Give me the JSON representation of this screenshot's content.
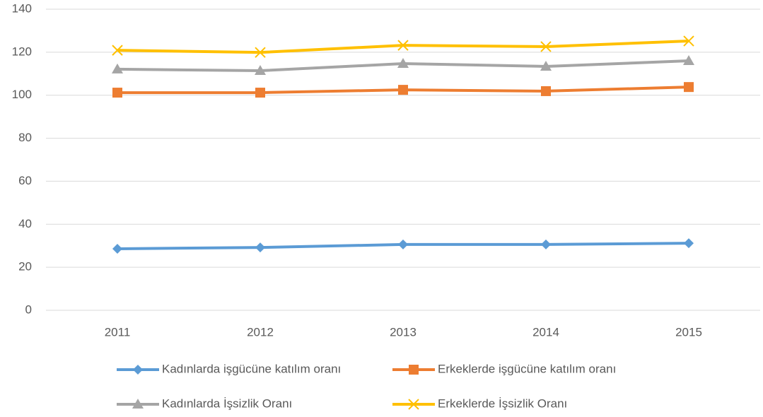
{
  "chart_data": {
    "type": "line",
    "categories": [
      "2011",
      "2012",
      "2013",
      "2014",
      "2015"
    ],
    "series": [
      {
        "name": "Kadınlarda işgücüne katılım oranı",
        "color": "#5b9bd5",
        "marker": "diamond",
        "values": [
          28.6,
          29.2,
          30.6,
          30.6,
          31.2
        ]
      },
      {
        "name": "Erkeklerde işgücüne katılım oranı",
        "color": "#ed7d31",
        "marker": "square",
        "values": [
          101.2,
          101.2,
          102.5,
          101.9,
          103.8
        ]
      },
      {
        "name": "Kadınlarda İşsizlik Oranı",
        "color": "#a5a5a5",
        "marker": "triangle",
        "values": [
          112.1,
          111.4,
          114.7,
          113.4,
          116.0
        ]
      },
      {
        "name": "Erkeklerde İşsizlik Oranı",
        "color": "#ffc000",
        "marker": "x",
        "values": [
          120.9,
          119.9,
          123.2,
          122.6,
          125.2
        ]
      }
    ],
    "ylim": [
      0,
      140
    ],
    "yticks": [
      0,
      20,
      40,
      60,
      80,
      100,
      120,
      140
    ],
    "grid": true,
    "legend": "bottom"
  }
}
